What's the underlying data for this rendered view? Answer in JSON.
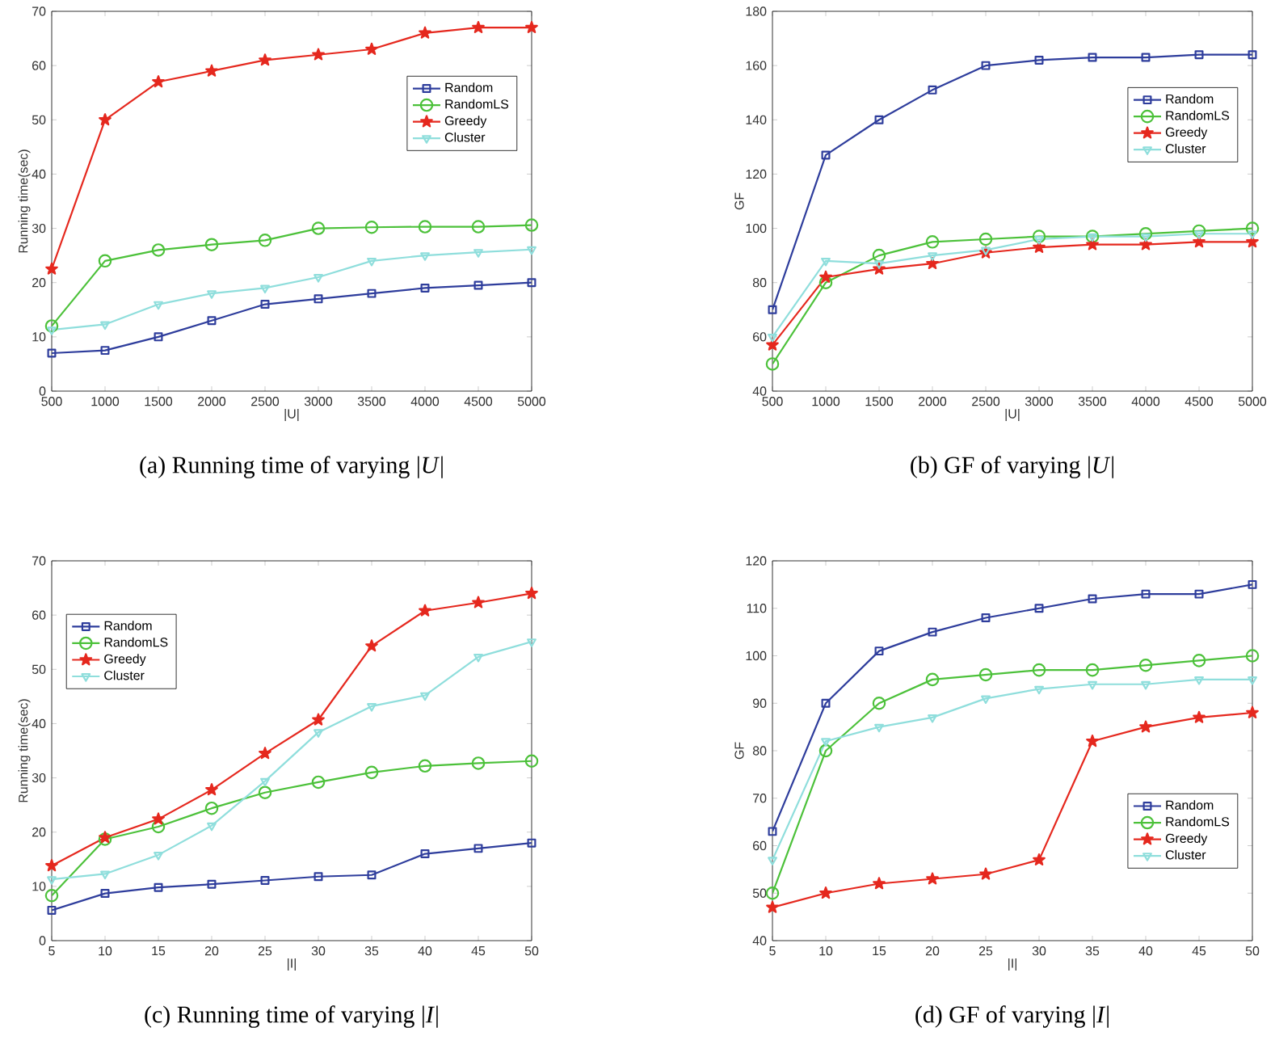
{
  "chart_data": [
    {
      "type": "line",
      "title": "(a) Running time of varying |*U*|",
      "xlabel": "|U|",
      "ylabel": "Running time(sec)",
      "x": [
        500,
        1000,
        1500,
        2000,
        2500,
        3000,
        3500,
        4000,
        4500,
        5000
      ],
      "xlim": [
        500,
        5000
      ],
      "xticks": [
        500,
        1000,
        1500,
        2000,
        2500,
        3000,
        3500,
        4000,
        4500,
        5000
      ],
      "ylim": [
        0,
        70
      ],
      "yticks": [
        0,
        10,
        20,
        30,
        40,
        50,
        60,
        70
      ],
      "legend": "top right",
      "series": [
        {
          "name": "Random",
          "color": "#2e3d9c",
          "marker": "square",
          "values": [
            7,
            7.5,
            10,
            13,
            16,
            17,
            18,
            19,
            19.5,
            20
          ]
        },
        {
          "name": "RandomLS",
          "color": "#4cc13a",
          "marker": "circle",
          "values": [
            12,
            24,
            26,
            27,
            27.8,
            30,
            30.2,
            30.3,
            30.3,
            30.6
          ]
        },
        {
          "name": "Greedy",
          "color": "#e5281e",
          "marker": "star",
          "values": [
            22.5,
            50,
            57,
            59,
            61,
            62,
            63,
            66,
            67,
            67
          ]
        },
        {
          "name": "Cluster",
          "color": "#8fdedc",
          "marker": "triangle",
          "values": [
            11.3,
            12.3,
            16,
            18,
            19,
            21,
            24,
            25,
            25.6,
            26.1
          ]
        }
      ]
    },
    {
      "type": "line",
      "title": "(b) GF of varying |*U*|",
      "xlabel": "|U|",
      "ylabel": "GF",
      "x": [
        500,
        1000,
        1500,
        2000,
        2500,
        3000,
        3500,
        4000,
        4500,
        5000
      ],
      "xlim": [
        500,
        5000
      ],
      "xticks": [
        500,
        1000,
        1500,
        2000,
        2500,
        3000,
        3500,
        4000,
        4500,
        5000
      ],
      "ylim": [
        40,
        180
      ],
      "yticks": [
        40,
        60,
        80,
        100,
        120,
        140,
        160,
        180
      ],
      "legend": "right",
      "series": [
        {
          "name": "Random",
          "color": "#2e3d9c",
          "marker": "square",
          "values": [
            70,
            127,
            140,
            151,
            160,
            162,
            163,
            163,
            164,
            164
          ]
        },
        {
          "name": "RandomLS",
          "color": "#4cc13a",
          "marker": "circle",
          "values": [
            50,
            80,
            90,
            95,
            96,
            97,
            97,
            98,
            99,
            100
          ]
        },
        {
          "name": "Greedy",
          "color": "#e5281e",
          "marker": "star",
          "values": [
            57,
            82,
            85,
            87,
            91,
            93,
            94,
            94,
            95,
            95
          ]
        },
        {
          "name": "Cluster",
          "color": "#8fdedc",
          "marker": "triangle",
          "values": [
            60,
            88,
            87,
            90,
            92,
            96,
            97,
            97,
            98,
            98
          ]
        }
      ]
    },
    {
      "type": "line",
      "title": "(c) Running time of varying |*I*|",
      "xlabel": "|I|",
      "ylabel": "Running time(sec)",
      "x": [
        5,
        10,
        15,
        20,
        25,
        30,
        35,
        40,
        45,
        50
      ],
      "xlim": [
        5,
        50
      ],
      "xticks": [
        5,
        10,
        15,
        20,
        25,
        30,
        35,
        40,
        45,
        50
      ],
      "ylim": [
        0,
        70
      ],
      "yticks": [
        0,
        10,
        20,
        30,
        40,
        50,
        60,
        70
      ],
      "legend": "top left",
      "series": [
        {
          "name": "Random",
          "color": "#2e3d9c",
          "marker": "square",
          "values": [
            5.6,
            8.7,
            9.8,
            10.4,
            11.1,
            11.8,
            12.1,
            16,
            17,
            18
          ]
        },
        {
          "name": "RandomLS",
          "color": "#4cc13a",
          "marker": "circle",
          "values": [
            8.3,
            18.7,
            21,
            24.4,
            27.3,
            29.2,
            31,
            32.2,
            32.7,
            33.1
          ]
        },
        {
          "name": "Greedy",
          "color": "#e5281e",
          "marker": "star",
          "values": [
            13.8,
            19,
            22.4,
            27.8,
            34.5,
            40.7,
            54.3,
            60.8,
            62.3,
            64
          ]
        },
        {
          "name": "Cluster",
          "color": "#8fdedc",
          "marker": "triangle",
          "values": [
            11.3,
            12.3,
            15.8,
            21.2,
            29.4,
            38.4,
            43.2,
            45.2,
            52.3,
            55.1
          ]
        }
      ]
    },
    {
      "type": "line",
      "title": "(d) GF of varying |*I*|",
      "xlabel": "|I|",
      "ylabel": "GF",
      "x": [
        5,
        10,
        15,
        20,
        25,
        30,
        35,
        40,
        45,
        50
      ],
      "xlim": [
        5,
        50
      ],
      "xticks": [
        5,
        10,
        15,
        20,
        25,
        30,
        35,
        40,
        45,
        50
      ],
      "ylim": [
        40,
        120
      ],
      "yticks": [
        40,
        50,
        60,
        70,
        80,
        90,
        100,
        110,
        120
      ],
      "legend": "bottom right",
      "series": [
        {
          "name": "Random",
          "color": "#2e3d9c",
          "marker": "square",
          "values": [
            63,
            90,
            101,
            105,
            108,
            110,
            112,
            113,
            113,
            115
          ]
        },
        {
          "name": "RandomLS",
          "color": "#4cc13a",
          "marker": "circle",
          "values": [
            50,
            80,
            90,
            95,
            96,
            97,
            97,
            98,
            99,
            100
          ]
        },
        {
          "name": "Greedy",
          "color": "#e5281e",
          "marker": "star",
          "values": [
            47,
            50,
            52,
            53,
            54,
            57,
            82,
            85,
            87,
            88
          ]
        },
        {
          "name": "Cluster",
          "color": "#8fdedc",
          "marker": "triangle",
          "values": [
            57,
            82,
            85,
            87,
            91,
            93,
            94,
            94,
            95,
            95
          ]
        }
      ]
    }
  ]
}
